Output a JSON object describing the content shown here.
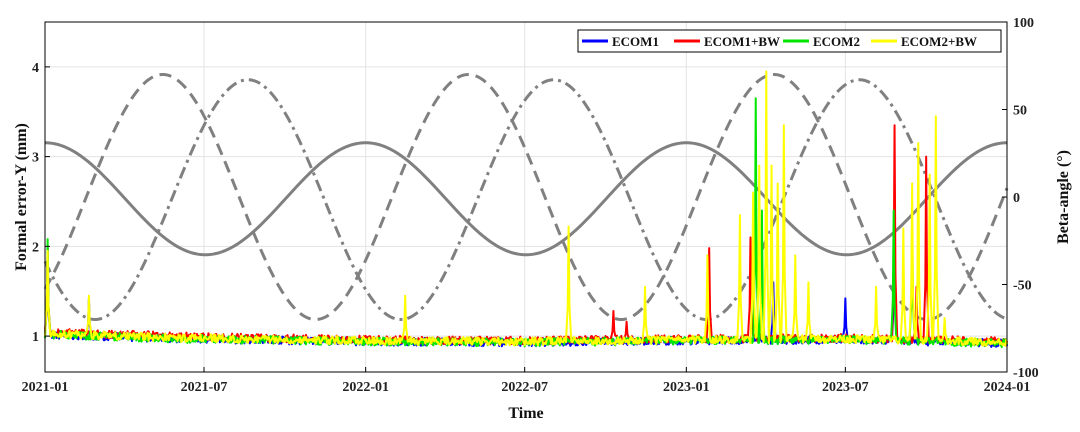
{
  "chart_data": {
    "type": "line",
    "xlabel": "Time",
    "ylabel_left": "Formal error-Y (mm)",
    "ylabel_right": "Beta-angle (°)",
    "x_range": [
      "2021-01-01",
      "2024-01-01"
    ],
    "x_ticks": [
      "2021-01",
      "2021-07",
      "2022-01",
      "2022-07",
      "2023-01",
      "2023-07",
      "2024-01"
    ],
    "ylim_left": [
      0.6,
      4.5
    ],
    "yticks_left": [
      1,
      2,
      3,
      4
    ],
    "ylim_right": [
      -100,
      100
    ],
    "yticks_right": [
      -100,
      -50,
      0,
      50,
      100
    ],
    "grid": true,
    "legend_position": "top-right",
    "colors": {
      "ECOM1": "#0000ff",
      "ECOM1+BW": "#ff0000",
      "ECOM2": "#00e600",
      "ECOM2+BW": "#ffff00",
      "beta": "#808080"
    },
    "series": [
      {
        "name": "ECOM1",
        "axis": "left",
        "baseline": [
          [
            "2021-01-01",
            1.02
          ],
          [
            "2021-06-01",
            0.97
          ],
          [
            "2022-01-01",
            0.94
          ],
          [
            "2022-07-01",
            0.93
          ],
          [
            "2023-01-01",
            0.95
          ],
          [
            "2023-07-01",
            0.96
          ],
          [
            "2024-01-01",
            0.92
          ]
        ],
        "spikes": [
          [
            "2021-01-04",
            1.9
          ],
          [
            "2021-02-20",
            1.42
          ],
          [
            "2021-04-15",
            0.9
          ],
          [
            "2021-06-20",
            0.9
          ],
          [
            "2023-02-15",
            0.88
          ],
          [
            "2023-03-25",
            0.9
          ],
          [
            "2023-04-10",
            1.6
          ],
          [
            "2023-07-01",
            1.42
          ],
          [
            "2023-08-26",
            2.3
          ],
          [
            "2023-09-28",
            0.95
          ]
        ]
      },
      {
        "name": "ECOM1+BW",
        "axis": "left",
        "baseline": [
          [
            "2021-01-01",
            1.04
          ],
          [
            "2021-06-01",
            1.0
          ],
          [
            "2022-01-01",
            0.96
          ],
          [
            "2022-07-01",
            0.95
          ],
          [
            "2023-01-01",
            0.97
          ],
          [
            "2023-07-01",
            0.98
          ],
          [
            "2024-01-01",
            0.94
          ]
        ],
        "spikes": [
          [
            "2021-01-04",
            2.0
          ],
          [
            "2022-10-10",
            1.28
          ],
          [
            "2022-10-25",
            1.16
          ],
          [
            "2023-01-27",
            1.98
          ],
          [
            "2023-03-15",
            2.1
          ],
          [
            "2023-08-26",
            3.35
          ],
          [
            "2023-09-20",
            1.55
          ],
          [
            "2023-10-01",
            3.0
          ]
        ]
      },
      {
        "name": "ECOM2",
        "axis": "left",
        "baseline": [
          [
            "2021-01-01",
            1.02
          ],
          [
            "2021-06-01",
            0.97
          ],
          [
            "2022-01-01",
            0.94
          ],
          [
            "2022-07-01",
            0.93
          ],
          [
            "2023-01-01",
            0.95
          ],
          [
            "2023-07-01",
            0.96
          ],
          [
            "2024-01-01",
            0.92
          ]
        ],
        "spikes": [
          [
            "2021-01-04",
            2.08
          ],
          [
            "2021-01-20",
            1.0
          ],
          [
            "2021-09-15",
            1.0
          ],
          [
            "2023-03-21",
            3.65
          ],
          [
            "2023-03-28",
            2.4
          ],
          [
            "2023-08-25",
            2.4
          ],
          [
            "2023-09-15",
            2.3
          ]
        ]
      },
      {
        "name": "ECOM2+BW",
        "axis": "left",
        "baseline": [
          [
            "2021-01-01",
            1.03
          ],
          [
            "2021-06-01",
            0.98
          ],
          [
            "2022-01-01",
            0.95
          ],
          [
            "2022-07-01",
            0.94
          ],
          [
            "2023-01-01",
            0.96
          ],
          [
            "2023-07-01",
            0.97
          ],
          [
            "2024-01-01",
            0.93
          ]
        ],
        "spikes": [
          [
            "2021-01-04",
            1.95
          ],
          [
            "2021-02-20",
            1.45
          ],
          [
            "2022-02-15",
            1.45
          ],
          [
            "2022-08-20",
            2.22
          ],
          [
            "2022-11-15",
            1.55
          ],
          [
            "2023-01-25",
            1.9
          ],
          [
            "2023-03-03",
            2.35
          ],
          [
            "2023-03-18",
            2.6
          ],
          [
            "2023-03-25",
            2.9
          ],
          [
            "2023-04-02",
            3.95
          ],
          [
            "2023-04-08",
            2.9
          ],
          [
            "2023-04-15",
            2.7
          ],
          [
            "2023-04-22",
            3.35
          ],
          [
            "2023-05-05",
            1.9
          ],
          [
            "2023-05-20",
            1.6
          ],
          [
            "2023-08-05",
            1.55
          ],
          [
            "2023-09-05",
            2.2
          ],
          [
            "2023-09-15",
            2.7
          ],
          [
            "2023-09-22",
            3.15
          ],
          [
            "2023-10-05",
            2.8
          ],
          [
            "2023-10-12",
            3.45
          ],
          [
            "2023-10-22",
            1.2
          ]
        ]
      },
      {
        "name": "beta-solid",
        "axis": "right",
        "style": "solid",
        "period_days": 365,
        "min": -33,
        "max": 31,
        "peak_date": "2021-01-01"
      },
      {
        "name": "beta-dashed",
        "axis": "right",
        "style": "dashed",
        "period_days": 348,
        "min": -70,
        "max": 70,
        "peak_date": "2021-05-15"
      },
      {
        "name": "beta-dashdot",
        "axis": "right",
        "style": "dashdot",
        "period_days": 348,
        "min": -70,
        "max": 67,
        "peak_date": "2021-08-20"
      }
    ]
  }
}
